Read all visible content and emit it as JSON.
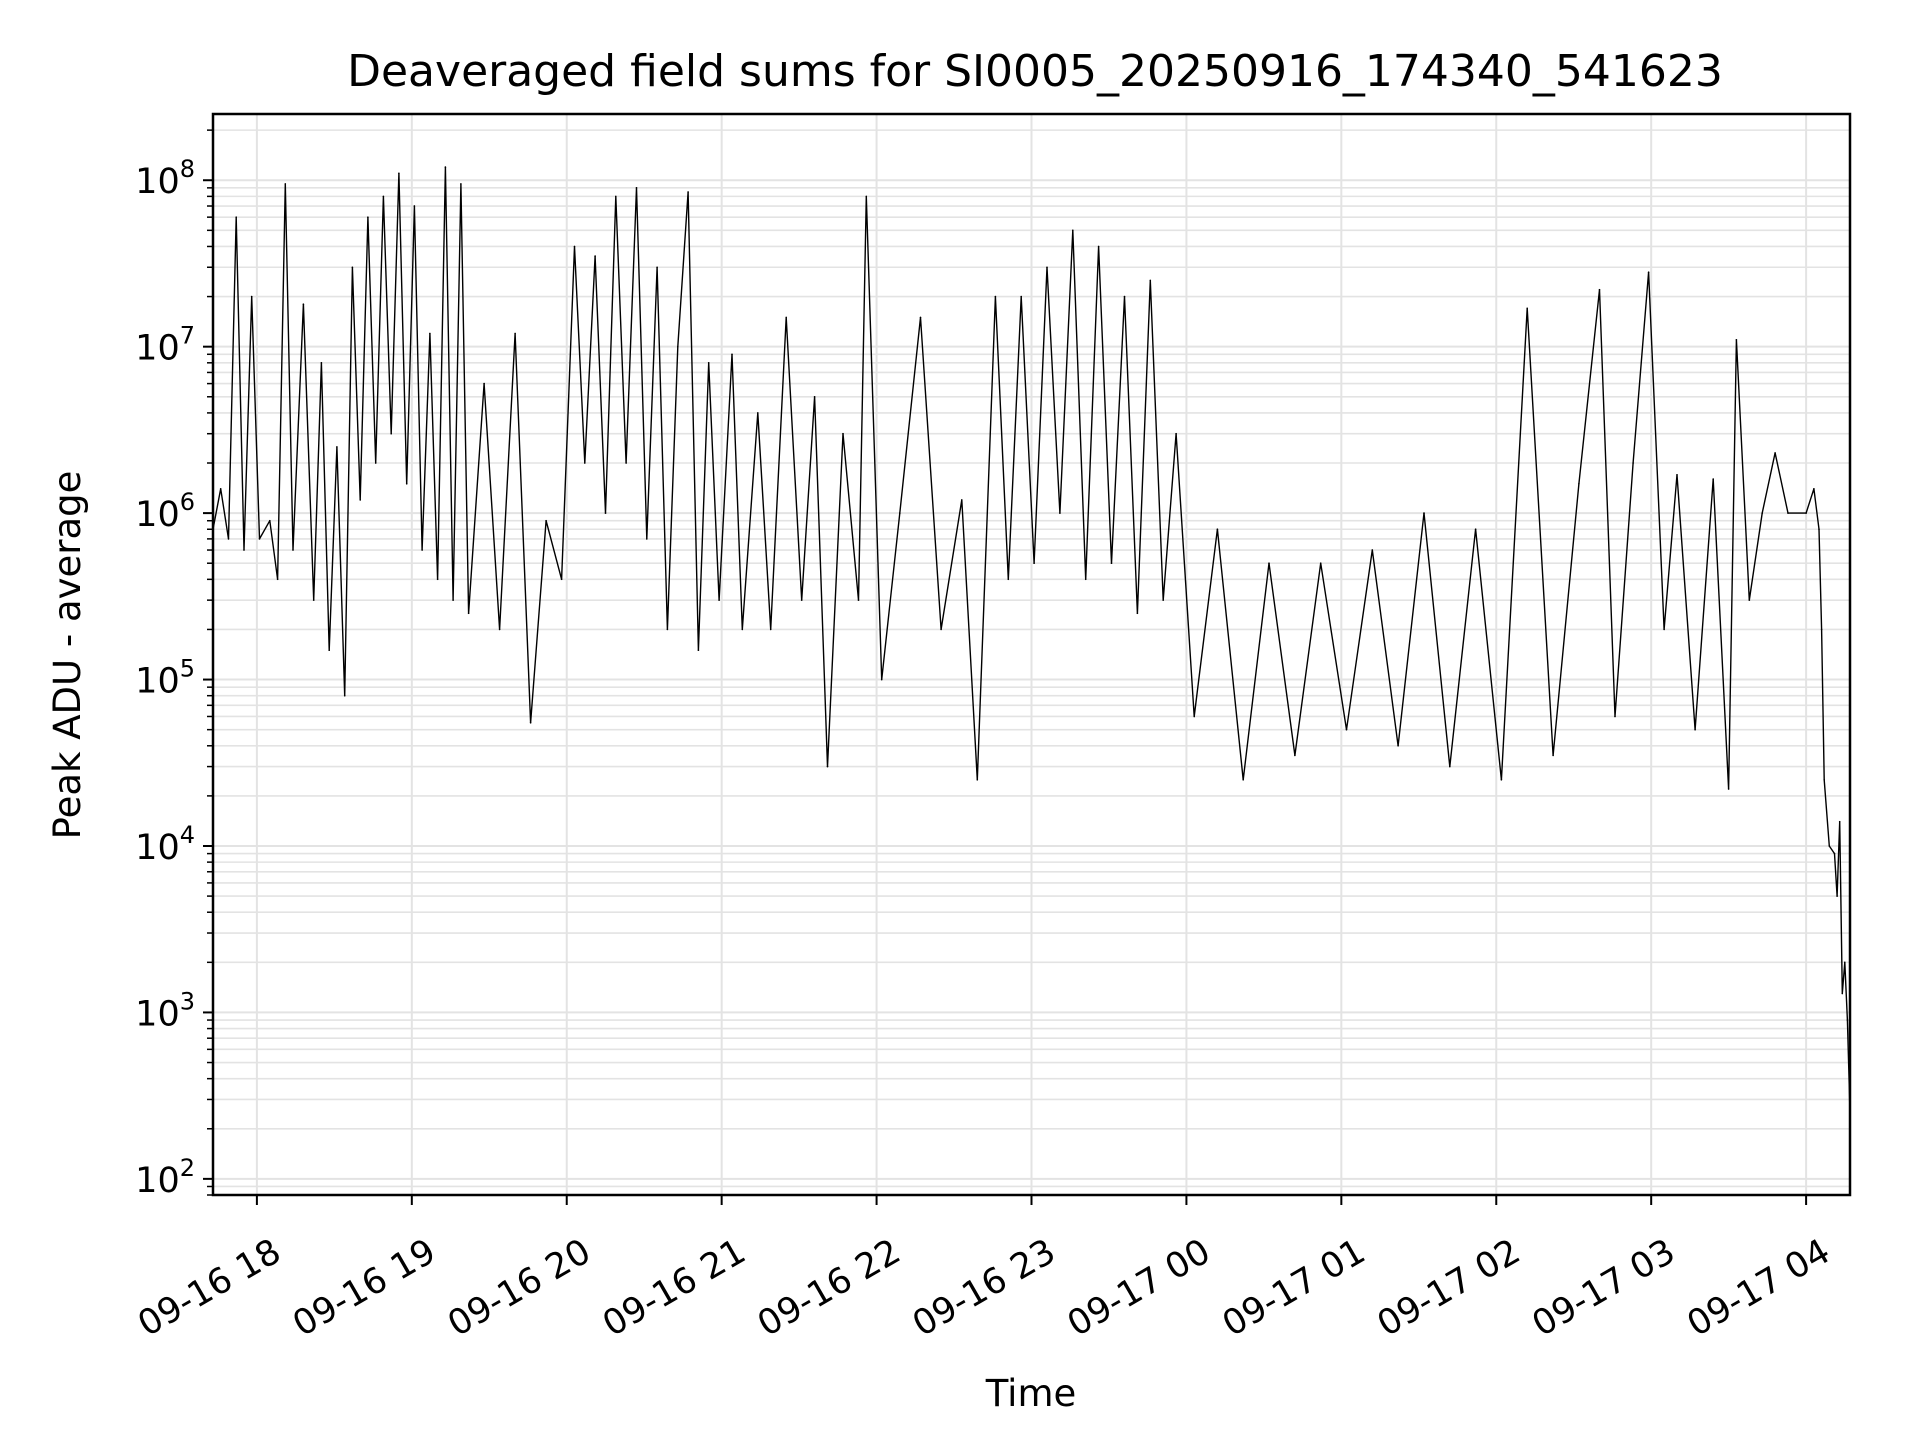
{
  "chart_data": {
    "type": "line",
    "title": "Deaveraged field sums for SI0005_20250916_174340_541623",
    "xlabel": "Time",
    "ylabel": "Peak ADU - average",
    "yscale": "log",
    "ylim": [
      80,
      250000000
    ],
    "xlim": [
      "09-16 17:43",
      "09-17 04:17"
    ],
    "grid": true,
    "color": "#000000",
    "x_ticks": [
      "09-16 18",
      "09-16 19",
      "09-16 20",
      "09-16 21",
      "09-16 22",
      "09-16 23",
      "09-17 00",
      "09-17 01",
      "09-17 02",
      "09-17 03",
      "09-17 04"
    ],
    "y_ticks": [
      {
        "base": "10",
        "exp": "2",
        "value": 100
      },
      {
        "base": "10",
        "exp": "3",
        "value": 1000
      },
      {
        "base": "10",
        "exp": "4",
        "value": 10000
      },
      {
        "base": "10",
        "exp": "5",
        "value": 100000
      },
      {
        "base": "10",
        "exp": "6",
        "value": 1000000
      },
      {
        "base": "10",
        "exp": "7",
        "value": 10000000
      },
      {
        "base": "10",
        "exp": "8",
        "value": 100000000
      }
    ],
    "series": [
      {
        "color": "#000000",
        "points": [
          [
            "09-16 17:43",
            800000
          ],
          [
            "09-16 17:46",
            1400000
          ],
          [
            "09-16 17:49",
            700000
          ],
          [
            "09-16 17:52",
            60000000
          ],
          [
            "09-16 17:55",
            600000
          ],
          [
            "09-16 17:58",
            20000000
          ],
          [
            "09-16 18:01",
            700000
          ],
          [
            "09-16 18:05",
            900000
          ],
          [
            "09-16 18:08",
            400000
          ],
          [
            "09-16 18:11",
            95000000
          ],
          [
            "09-16 18:14",
            600000
          ],
          [
            "09-16 18:18",
            18000000
          ],
          [
            "09-16 18:22",
            300000
          ],
          [
            "09-16 18:25",
            8000000
          ],
          [
            "09-16 18:28",
            150000
          ],
          [
            "09-16 18:31",
            2500000
          ],
          [
            "09-16 18:34",
            80000
          ],
          [
            "09-16 18:37",
            30000000
          ],
          [
            "09-16 18:40",
            1200000
          ],
          [
            "09-16 18:43",
            60000000
          ],
          [
            "09-16 18:46",
            2000000
          ],
          [
            "09-16 18:49",
            80000000
          ],
          [
            "09-16 18:52",
            3000000
          ],
          [
            "09-16 18:55",
            110000000
          ],
          [
            "09-16 18:58",
            1500000
          ],
          [
            "09-16 19:01",
            70000000
          ],
          [
            "09-16 19:04",
            600000
          ],
          [
            "09-16 19:07",
            12000000
          ],
          [
            "09-16 19:10",
            400000
          ],
          [
            "09-16 19:13",
            120000000
          ],
          [
            "09-16 19:16",
            300000
          ],
          [
            "09-16 19:19",
            95000000
          ],
          [
            "09-16 19:22",
            250000
          ],
          [
            "09-16 19:28",
            6000000
          ],
          [
            "09-16 19:34",
            200000
          ],
          [
            "09-16 19:40",
            12000000
          ],
          [
            "09-16 19:46",
            55000
          ],
          [
            "09-16 19:52",
            900000
          ],
          [
            "09-16 19:58",
            400000
          ],
          [
            "09-16 20:03",
            40000000
          ],
          [
            "09-16 20:07",
            2000000
          ],
          [
            "09-16 20:11",
            35000000
          ],
          [
            "09-16 20:15",
            1000000
          ],
          [
            "09-16 20:19",
            80000000
          ],
          [
            "09-16 20:23",
            2000000
          ],
          [
            "09-16 20:27",
            90000000
          ],
          [
            "09-16 20:31",
            700000
          ],
          [
            "09-16 20:35",
            30000000
          ],
          [
            "09-16 20:39",
            200000
          ],
          [
            "09-16 20:43",
            10000000
          ],
          [
            "09-16 20:47",
            85000000
          ],
          [
            "09-16 20:51",
            150000
          ],
          [
            "09-16 20:55",
            8000000
          ],
          [
            "09-16 20:59",
            300000
          ],
          [
            "09-16 21:04",
            9000000
          ],
          [
            "09-16 21:08",
            200000
          ],
          [
            "09-16 21:14",
            4000000
          ],
          [
            "09-16 21:19",
            200000
          ],
          [
            "09-16 21:25",
            15000000
          ],
          [
            "09-16 21:31",
            300000
          ],
          [
            "09-16 21:36",
            5000000
          ],
          [
            "09-16 21:41",
            30000
          ],
          [
            "09-16 21:47",
            3000000
          ],
          [
            "09-16 21:53",
            300000
          ],
          [
            "09-16 21:56",
            80000000
          ],
          [
            "09-16 22:02",
            100000
          ],
          [
            "09-16 22:09",
            1000000
          ],
          [
            "09-16 22:17",
            15000000
          ],
          [
            "09-16 22:25",
            200000
          ],
          [
            "09-16 22:33",
            1200000
          ],
          [
            "09-16 22:39",
            25000
          ],
          [
            "09-16 22:46",
            20000000
          ],
          [
            "09-16 22:51",
            400000
          ],
          [
            "09-16 22:56",
            20000000
          ],
          [
            "09-16 23:01",
            500000
          ],
          [
            "09-16 23:06",
            30000000
          ],
          [
            "09-16 23:11",
            1000000
          ],
          [
            "09-16 23:16",
            50000000
          ],
          [
            "09-16 23:21",
            400000
          ],
          [
            "09-16 23:26",
            40000000
          ],
          [
            "09-16 23:31",
            500000
          ],
          [
            "09-16 23:36",
            20000000
          ],
          [
            "09-16 23:41",
            250000
          ],
          [
            "09-16 23:46",
            25000000
          ],
          [
            "09-16 23:51",
            300000
          ],
          [
            "09-16 23:56",
            3000000
          ],
          [
            "09-17 00:03",
            60000
          ],
          [
            "09-17 00:12",
            800000
          ],
          [
            "09-17 00:22",
            25000
          ],
          [
            "09-17 00:32",
            500000
          ],
          [
            "09-17 00:42",
            35000
          ],
          [
            "09-17 00:52",
            500000
          ],
          [
            "09-17 01:02",
            50000
          ],
          [
            "09-17 01:12",
            600000
          ],
          [
            "09-17 01:22",
            40000
          ],
          [
            "09-17 01:32",
            1000000
          ],
          [
            "09-17 01:42",
            30000
          ],
          [
            "09-17 01:52",
            800000
          ],
          [
            "09-17 02:02",
            25000
          ],
          [
            "09-17 02:12",
            17000000
          ],
          [
            "09-17 02:22",
            35000
          ],
          [
            "09-17 02:32",
            1500000
          ],
          [
            "09-17 02:40",
            22000000
          ],
          [
            "09-17 02:46",
            60000
          ],
          [
            "09-17 02:53",
            2000000
          ],
          [
            "09-17 02:59",
            28000000
          ],
          [
            "09-17 03:05",
            200000
          ],
          [
            "09-17 03:10",
            1700000
          ],
          [
            "09-17 03:17",
            50000
          ],
          [
            "09-17 03:24",
            1600000
          ],
          [
            "09-17 03:30",
            22000
          ],
          [
            "09-17 03:33",
            11000000
          ],
          [
            "09-17 03:38",
            300000
          ],
          [
            "09-17 03:43",
            1000000
          ],
          [
            "09-17 03:48",
            2300000
          ],
          [
            "09-17 03:53",
            1000000
          ],
          [
            "09-17 04:00",
            1000000
          ],
          [
            "09-17 04:03",
            1400000
          ],
          [
            "09-17 04:05",
            800000
          ],
          [
            "09-17 04:06",
            200000
          ],
          [
            "09-17 04:07",
            25000
          ],
          [
            "09-17 04:09",
            10000
          ],
          [
            "09-17 04:11",
            9000
          ],
          [
            "09-17 04:12",
            5000
          ],
          [
            "09-17 04:13",
            14000
          ],
          [
            "09-17 04:14",
            1300
          ],
          [
            "09-17 04:15",
            2000
          ],
          [
            "09-17 04:16",
            900
          ],
          [
            "09-17 04:17",
            250
          ]
        ]
      }
    ]
  }
}
